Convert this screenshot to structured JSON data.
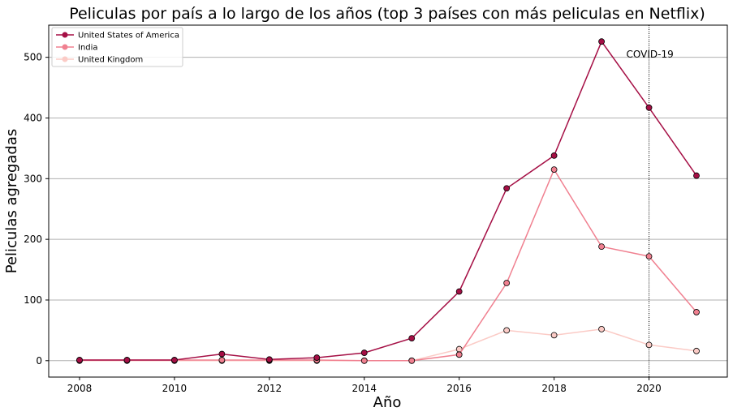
{
  "chart_data": {
    "type": "line",
    "title": "Peliculas por país a lo largo de los años (top 3 países con más peliculas en Netflix)",
    "xlabel": "Año",
    "ylabel": "Peliculas agregadas",
    "x": [
      2008,
      2009,
      2010,
      2011,
      2012,
      2013,
      2014,
      2015,
      2016,
      2017,
      2018,
      2019,
      2020,
      2021
    ],
    "xlim": [
      2007.35,
      2021.65
    ],
    "ylim": [
      -27,
      553
    ],
    "xticks": [
      2008,
      2010,
      2012,
      2014,
      2016,
      2018,
      2020
    ],
    "yticks": [
      0,
      100,
      200,
      300,
      400,
      500
    ],
    "grid": "horizontal",
    "legend_position": "top-left",
    "series": [
      {
        "name": "United States of America",
        "color": "#a50f45",
        "values": [
          1,
          1,
          1,
          11,
          2,
          5,
          13,
          37,
          114,
          284,
          338,
          526,
          417,
          305
        ]
      },
      {
        "name": "India",
        "color": "#f08090",
        "values": [
          1,
          1,
          1,
          1,
          1,
          1,
          0,
          0,
          10,
          128,
          315,
          188,
          172,
          80
        ]
      },
      {
        "name": "United Kingdom",
        "color": "#fbcbc6",
        "values": [
          0,
          0,
          0,
          0,
          0,
          0,
          0,
          0,
          19,
          50,
          42,
          52,
          26,
          16
        ]
      }
    ],
    "annotations": [
      {
        "type": "vline",
        "x": 2020,
        "label": "COVID-19",
        "y": 505
      }
    ]
  }
}
